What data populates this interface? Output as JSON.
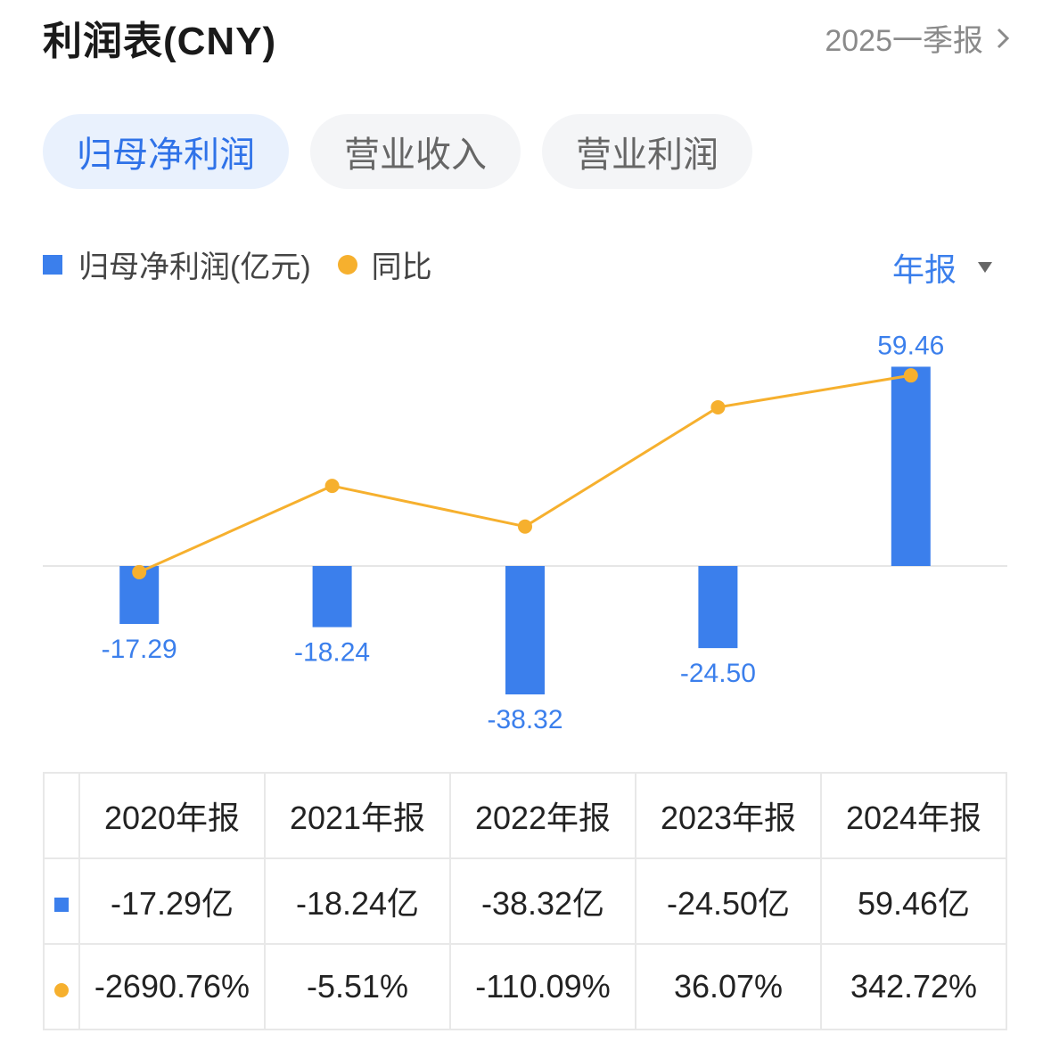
{
  "header": {
    "title": "利润表(CNY)",
    "period_link": "2025一季报"
  },
  "tabs": [
    {
      "label": "归母净利润",
      "active": true
    },
    {
      "label": "营业收入",
      "active": false
    },
    {
      "label": "营业利润",
      "active": false
    }
  ],
  "legend": {
    "bar_label": "归母净利润(亿元)",
    "line_label": "同比"
  },
  "report_select": {
    "label": "年报"
  },
  "colors": {
    "bar": "#3b7fec",
    "line": "#f6b02e",
    "positive": "#e8433f",
    "negative": "#2aa06a",
    "accent": "#2f72e8"
  },
  "chart_data": {
    "type": "bar",
    "categories": [
      "2020年报",
      "2021年报",
      "2022年报",
      "2023年报",
      "2024年报"
    ],
    "series": [
      {
        "name": "归母净利润(亿元)",
        "type": "bar",
        "values": [
          -17.29,
          -18.24,
          -38.32,
          -24.5,
          59.46
        ],
        "labels": [
          "-17.29",
          "-18.24",
          "-38.32",
          "-24.50",
          "59.46"
        ]
      },
      {
        "name": "同比",
        "type": "line",
        "values": [
          -2690.76,
          -5.51,
          -110.09,
          36.07,
          342.72
        ]
      }
    ]
  },
  "table": {
    "headers": [
      "2020年报",
      "2021年报",
      "2022年报",
      "2023年报",
      "2024年报"
    ],
    "values": [
      "-17.29亿",
      "-18.24亿",
      "-38.32亿",
      "-24.50亿",
      "59.46亿"
    ],
    "yoy": [
      "-2690.76%",
      "-5.51%",
      "-110.09%",
      "36.07%",
      "342.72%"
    ]
  }
}
